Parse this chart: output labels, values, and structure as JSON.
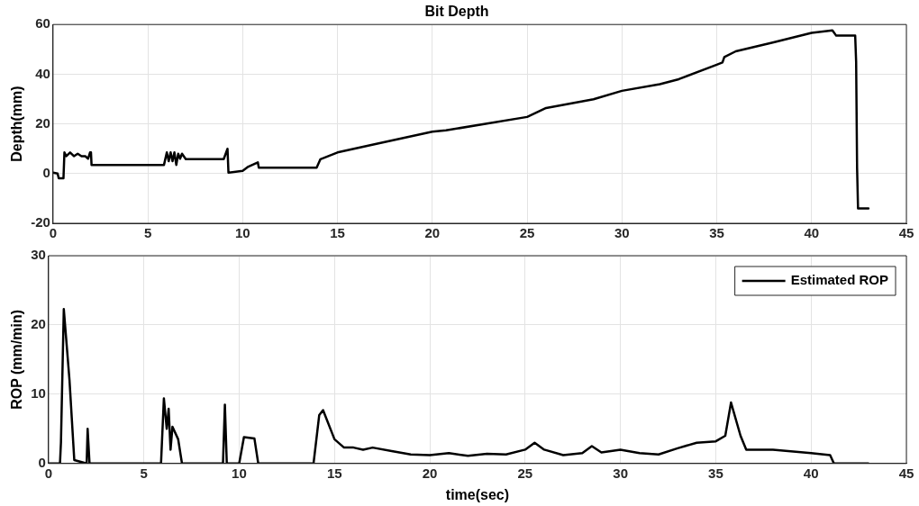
{
  "chart_data": [
    {
      "type": "line",
      "title": "Bit Depth",
      "ylabel": "Depth(mm)",
      "grid": true,
      "legend": false,
      "marker": "none",
      "line_style": "solid",
      "xlim": [
        0,
        45
      ],
      "xticks": [
        0,
        5,
        10,
        15,
        20,
        25,
        30,
        35,
        40,
        45
      ],
      "ylim": [
        -20,
        60
      ],
      "yticks": [
        -20,
        0,
        20,
        40,
        60
      ],
      "series": [
        {
          "color": "#000000",
          "x": [
            0,
            0.24,
            0.3,
            0.55,
            0.6,
            0.7,
            0.9,
            1.1,
            1.3,
            1.5,
            1.7,
            1.85,
            1.95,
            2.0,
            2.03,
            5.85,
            6.0,
            6.1,
            6.2,
            6.3,
            6.4,
            6.5,
            6.6,
            6.7,
            6.8,
            7.0,
            9.0,
            9.2,
            9.25,
            10.0,
            10.3,
            10.8,
            10.85,
            13.9,
            14.1,
            15,
            17,
            20,
            20.72,
            25,
            26,
            28.5,
            30,
            32,
            33,
            35,
            35.3,
            35.4,
            36,
            38,
            40,
            41.1,
            41.3,
            42.3,
            42.35,
            42.4,
            42.45,
            43
          ],
          "values": [
            0.4,
            0,
            -1.9,
            -1.9,
            8.5,
            7,
            8.5,
            7,
            8,
            7,
            7,
            6,
            8.5,
            8.5,
            3.5,
            3.5,
            8.5,
            5,
            8.5,
            5,
            8.5,
            3.5,
            8,
            6,
            8,
            5.8,
            5.8,
            10,
            0.4,
            1.1,
            2.8,
            4.5,
            2.4,
            2.4,
            5.8,
            8.5,
            11.9,
            16.9,
            17.4,
            22.8,
            26.4,
            29.9,
            33.3,
            36,
            38,
            43.8,
            44.7,
            46.9,
            49.2,
            52.8,
            56.6,
            57.6,
            55.5,
            55.5,
            45,
            2.4,
            -14,
            -14
          ]
        }
      ]
    },
    {
      "type": "line",
      "xlabel": "time(sec)",
      "ylabel": "ROP (mm/min)",
      "grid": true,
      "legend": "top right",
      "marker": "none",
      "line_style": "solid",
      "xlim": [
        0,
        45
      ],
      "xticks": [
        0,
        5,
        10,
        15,
        20,
        25,
        30,
        35,
        40,
        45
      ],
      "ylim": [
        0,
        30
      ],
      "yticks": [
        0,
        10,
        20,
        30
      ],
      "series": [
        {
          "name": "Estimated ROP",
          "color": "#000000",
          "x": [
            0,
            0.6,
            0.65,
            0.8,
            1.1,
            1.35,
            2.0,
            2.05,
            2.15,
            5.9,
            6.05,
            6.2,
            6.3,
            6.4,
            6.5,
            6.8,
            7.0,
            9.15,
            9.25,
            9.35,
            10.0,
            10.25,
            10.8,
            11.0,
            13.9,
            14.2,
            14.4,
            15,
            15.5,
            16,
            16.5,
            17,
            18,
            19,
            20,
            21,
            22,
            23,
            24,
            25,
            25.5,
            26,
            27,
            28,
            28.5,
            29,
            30,
            31,
            32,
            33,
            34,
            35,
            35.5,
            35.8,
            36.3,
            36.6,
            38,
            40,
            41,
            41.2,
            43
          ],
          "values": [
            0,
            0,
            3,
            22.3,
            12,
            0.5,
            0,
            5,
            0,
            0,
            9.4,
            5,
            7.9,
            2,
            5.3,
            3.5,
            0,
            0,
            8.5,
            0,
            0,
            3.8,
            3.6,
            0,
            0,
            7,
            7.7,
            3.5,
            2.3,
            2.3,
            2,
            2.3,
            1.8,
            1.3,
            1.2,
            1.5,
            1.1,
            1.4,
            1.3,
            2,
            3,
            2,
            1.2,
            1.5,
            2.5,
            1.6,
            2,
            1.5,
            1.3,
            2.2,
            3,
            3.2,
            4,
            8.8,
            4,
            2,
            2,
            1.5,
            1.2,
            0,
            0
          ]
        }
      ]
    }
  ]
}
